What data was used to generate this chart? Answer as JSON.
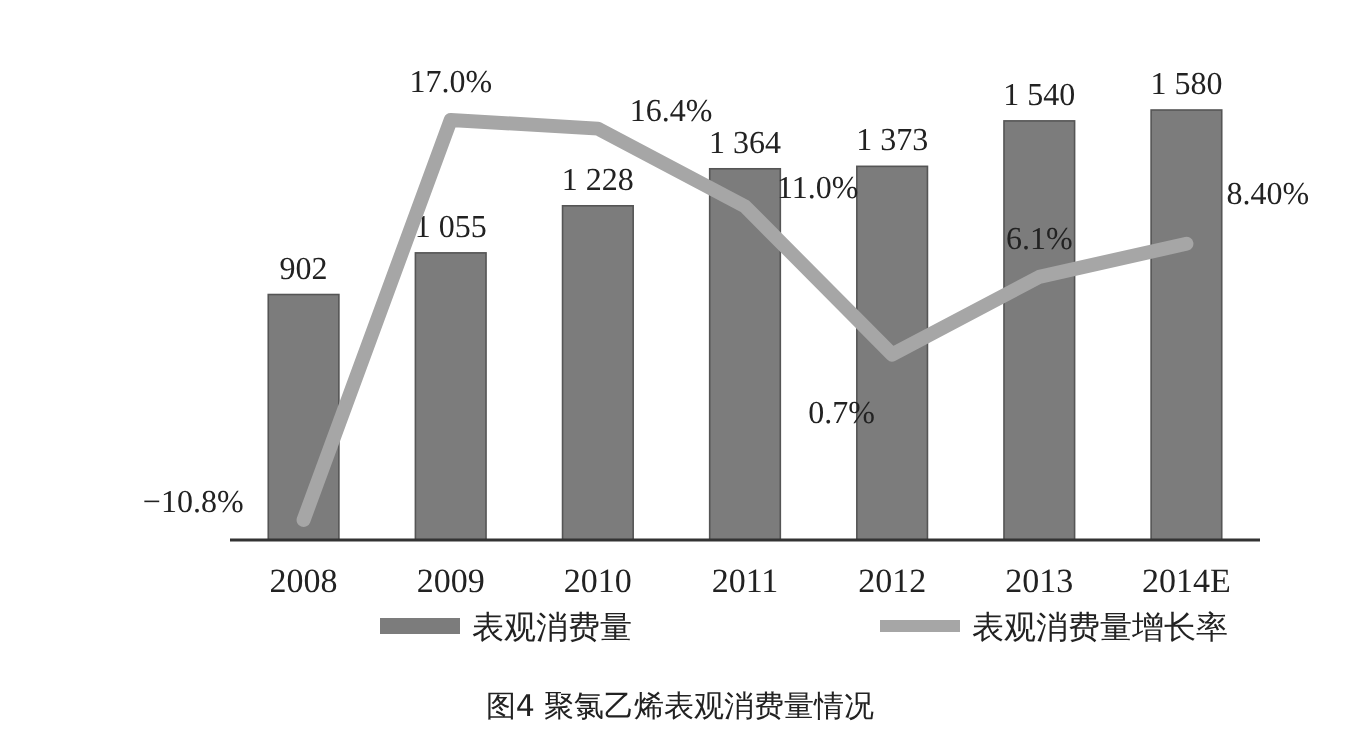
{
  "chart_data": {
    "type": "bar",
    "title": "图4  聚氯乙烯表观消费量情况",
    "categories": [
      "2008",
      "2009",
      "2010",
      "2011",
      "2012",
      "2013",
      "2014E"
    ],
    "series": [
      {
        "name": "表观消费量",
        "color": "#7c7c7c",
        "values": [
          902,
          1055,
          1228,
          1364,
          1373,
          1540,
          1580
        ],
        "value_labels": [
          "902",
          "1 055",
          "1 228",
          "1 364",
          "1 373",
          "1 540",
          "1 580"
        ]
      },
      {
        "name": "表观消费量增长率",
        "type": "line",
        "axis": "y2",
        "color": "#a6a6a6",
        "values": [
          -10.8,
          17.0,
          16.4,
          11.0,
          0.7,
          6.1,
          8.4
        ],
        "value_labels": [
          "−10.8%",
          "17.0%",
          "16.4%",
          "11.0%",
          "0.7%",
          "6.1%",
          "8.40%"
        ]
      }
    ],
    "legend": "bottom"
  }
}
